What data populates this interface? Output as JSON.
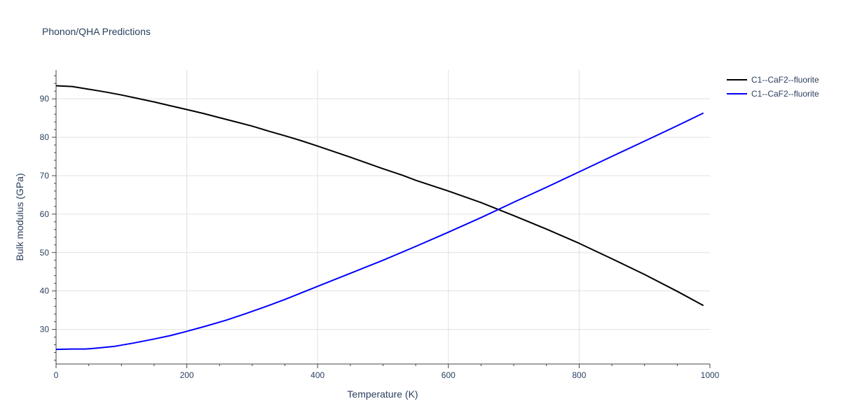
{
  "chart_data": {
    "type": "line",
    "title": "Phonon/QHA Predictions",
    "xlabel": "Temperature (K)",
    "ylabel": "Bulk modulus (GPa)",
    "xlim": [
      0,
      1000
    ],
    "ylim": [
      21,
      97.5
    ],
    "xticks": [
      0,
      200,
      400,
      600,
      800,
      1000
    ],
    "yticks": [
      30,
      40,
      50,
      60,
      70,
      80,
      90
    ],
    "grid": true,
    "legend_position": "top-right",
    "series": [
      {
        "name": "C1--CaF2--fluorite",
        "color": "#000000",
        "x": [
          0,
          25,
          50,
          75,
          100,
          125,
          150,
          175,
          200,
          225,
          250,
          275,
          300,
          325,
          350,
          375,
          400,
          450,
          500,
          530,
          550,
          600,
          650,
          700,
          750,
          800,
          850,
          900,
          950,
          990
        ],
        "y": [
          93.4,
          93.2,
          92.5,
          91.8,
          91.0,
          90.1,
          89.2,
          88.2,
          87.2,
          86.2,
          85.1,
          84.0,
          82.9,
          81.6,
          80.4,
          79.1,
          77.7,
          74.8,
          71.8,
          70.1,
          68.8,
          66.0,
          63.0,
          59.6,
          56.1,
          52.4,
          48.4,
          44.3,
          39.9,
          36.2
        ]
      },
      {
        "name": "C1--CaF2--fluorite",
        "color": "#0000ff",
        "x": [
          0,
          25,
          45,
          60,
          90,
          120,
          150,
          175,
          200,
          230,
          260,
          290,
          320,
          350,
          400,
          450,
          500,
          550,
          600,
          650,
          700,
          750,
          800,
          850,
          900,
          950,
          990
        ],
        "y": [
          24.8,
          24.9,
          24.9,
          25.1,
          25.6,
          26.5,
          27.5,
          28.4,
          29.5,
          30.9,
          32.4,
          34.1,
          35.9,
          37.8,
          41.2,
          44.6,
          48.0,
          51.6,
          55.3,
          59.1,
          63.1,
          67.0,
          71.0,
          75.0,
          79.0,
          83.0,
          86.3
        ]
      }
    ]
  }
}
